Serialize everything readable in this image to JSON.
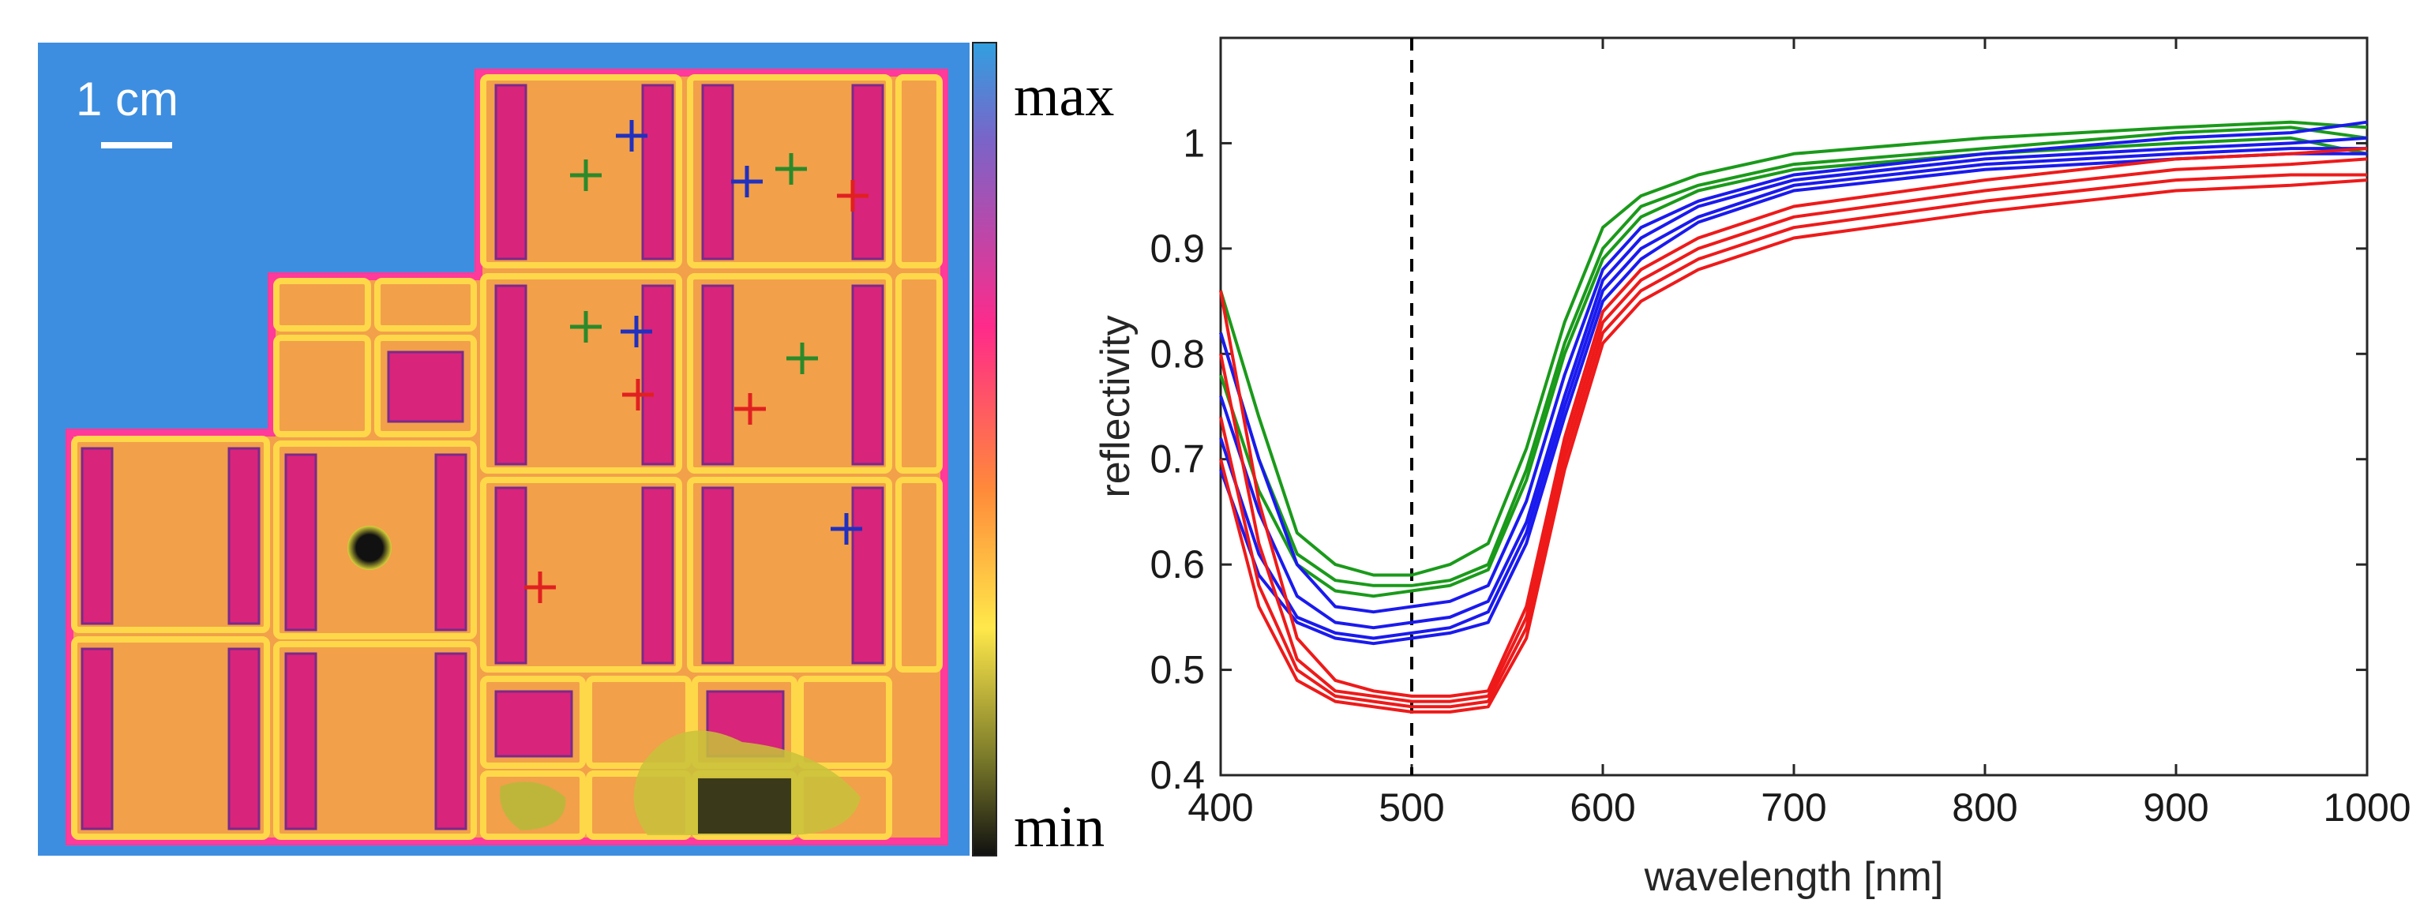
{
  "image": {
    "scale_bar_label": "1 cm",
    "colorbar": {
      "max_label": "max",
      "min_label": "min"
    },
    "markers": [
      {
        "color": "#2030c0",
        "label": "blue"
      },
      {
        "color": "#2a8a2a",
        "label": "green"
      },
      {
        "color": "#e02020",
        "label": "red"
      }
    ]
  },
  "chart_data": {
    "type": "line",
    "title": "",
    "xlabel": "wavelength [nm]",
    "ylabel": "reflectivity",
    "xlim": [
      400,
      1000
    ],
    "ylim": [
      0.4,
      1.1
    ],
    "xticks": [
      "400",
      "500",
      "600",
      "700",
      "800",
      "900",
      "1000"
    ],
    "yticks": [
      "0.4",
      "0.5",
      "0.6",
      "0.7",
      "0.8",
      "0.9",
      "1"
    ],
    "xtick_values": [
      400,
      500,
      600,
      700,
      800,
      900,
      1000
    ],
    "ytick_values": [
      0.4,
      0.5,
      0.6,
      0.7,
      0.8,
      0.9,
      1.0
    ],
    "vline": {
      "x": 500,
      "style": "dashed"
    },
    "x": [
      400,
      420,
      440,
      460,
      480,
      500,
      520,
      540,
      560,
      580,
      600,
      620,
      650,
      700,
      800,
      900,
      960,
      1000
    ],
    "series": [
      {
        "name": "green",
        "color": "#1a9a1a",
        "values": [
          0.86,
          0.74,
          0.63,
          0.6,
          0.59,
          0.59,
          0.6,
          0.62,
          0.71,
          0.83,
          0.92,
          0.95,
          0.97,
          0.99,
          1.005,
          1.015,
          1.02,
          1.015
        ]
      },
      {
        "name": "green",
        "color": "#1a9a1a",
        "values": [
          0.82,
          0.7,
          0.61,
          0.585,
          0.58,
          0.58,
          0.585,
          0.6,
          0.69,
          0.81,
          0.9,
          0.94,
          0.96,
          0.98,
          0.995,
          1.01,
          1.015,
          1.005
        ]
      },
      {
        "name": "green",
        "color": "#1a9a1a",
        "values": [
          0.78,
          0.67,
          0.6,
          0.575,
          0.57,
          0.575,
          0.58,
          0.595,
          0.68,
          0.8,
          0.89,
          0.93,
          0.955,
          0.975,
          0.99,
          1.0,
          1.005,
          0.99
        ]
      },
      {
        "name": "blue",
        "color": "#1a1aee",
        "values": [
          0.82,
          0.7,
          0.6,
          0.56,
          0.555,
          0.56,
          0.565,
          0.58,
          0.66,
          0.78,
          0.88,
          0.92,
          0.945,
          0.97,
          0.99,
          1.005,
          1.01,
          1.02
        ]
      },
      {
        "name": "blue",
        "color": "#1a1aee",
        "values": [
          0.76,
          0.65,
          0.57,
          0.545,
          0.54,
          0.545,
          0.55,
          0.565,
          0.64,
          0.76,
          0.87,
          0.91,
          0.94,
          0.965,
          0.985,
          0.995,
          1.0,
          1.005
        ]
      },
      {
        "name": "blue",
        "color": "#1a1aee",
        "values": [
          0.72,
          0.61,
          0.55,
          0.535,
          0.53,
          0.535,
          0.54,
          0.555,
          0.63,
          0.75,
          0.86,
          0.9,
          0.93,
          0.96,
          0.98,
          0.99,
          0.995,
          0.995
        ]
      },
      {
        "name": "blue",
        "color": "#1a1aee",
        "values": [
          0.69,
          0.59,
          0.545,
          0.53,
          0.525,
          0.53,
          0.535,
          0.545,
          0.62,
          0.74,
          0.85,
          0.89,
          0.925,
          0.955,
          0.975,
          0.985,
          0.99,
          0.99
        ]
      },
      {
        "name": "red",
        "color": "#ee1a1a",
        "values": [
          0.86,
          0.66,
          0.53,
          0.49,
          0.48,
          0.475,
          0.475,
          0.48,
          0.56,
          0.72,
          0.84,
          0.88,
          0.91,
          0.94,
          0.965,
          0.985,
          0.99,
          0.995
        ]
      },
      {
        "name": "red",
        "color": "#ee1a1a",
        "values": [
          0.8,
          0.62,
          0.51,
          0.48,
          0.475,
          0.47,
          0.47,
          0.475,
          0.55,
          0.71,
          0.83,
          0.87,
          0.9,
          0.93,
          0.955,
          0.975,
          0.98,
          0.985
        ]
      },
      {
        "name": "red",
        "color": "#ee1a1a",
        "values": [
          0.74,
          0.58,
          0.5,
          0.475,
          0.47,
          0.465,
          0.465,
          0.47,
          0.54,
          0.7,
          0.82,
          0.86,
          0.89,
          0.92,
          0.945,
          0.965,
          0.97,
          0.97
        ]
      },
      {
        "name": "red",
        "color": "#ee1a1a",
        "values": [
          0.7,
          0.56,
          0.49,
          0.47,
          0.465,
          0.46,
          0.46,
          0.465,
          0.53,
          0.69,
          0.81,
          0.85,
          0.88,
          0.91,
          0.935,
          0.955,
          0.96,
          0.965
        ]
      }
    ]
  }
}
